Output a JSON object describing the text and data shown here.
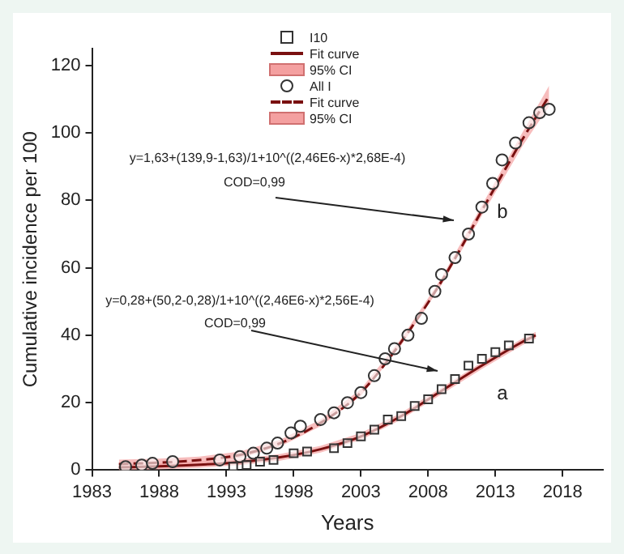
{
  "chart_data": {
    "type": "scatter",
    "xlabel": "Years",
    "ylabel": "Cumulative incidence per 100",
    "xlim": [
      1983,
      2021
    ],
    "xticks": [
      1983,
      1988,
      1993,
      1998,
      2003,
      2008,
      2013,
      2018
    ],
    "ylim": [
      0,
      125
    ],
    "yticks": [
      0,
      20,
      40,
      60,
      80,
      100,
      120
    ],
    "grid": false,
    "legend": "top",
    "series": [
      {
        "name": "I10",
        "marker": "square",
        "color": "#333333",
        "x": [
          1993.5,
          1994.5,
          1995.5,
          1996.5,
          1998,
          1999,
          2001,
          2002,
          2003,
          2004,
          2005,
          2006,
          2007,
          2008,
          2009,
          2010,
          2011,
          2012,
          2013,
          2014,
          2015.5
        ],
        "values": [
          1,
          1.5,
          2.5,
          3,
          5,
          5.5,
          6.5,
          8,
          10,
          12,
          15,
          16,
          19,
          21,
          24,
          27,
          31,
          33,
          35,
          37,
          39
        ]
      },
      {
        "name": "Fit curve",
        "type": "line",
        "line_style": "solid",
        "color": "#7a1010",
        "x": [
          1985,
          1988,
          1991,
          1994,
          1997,
          2000,
          2003,
          2006,
          2009,
          2012,
          2015,
          2016
        ],
        "values": [
          0.8,
          1.1,
          1.6,
          2.4,
          3.8,
          6.2,
          10,
          16,
          23.5,
          31,
          38,
          40
        ],
        "lower": [
          0,
          0.2,
          0.7,
          1.5,
          2.8,
          5.2,
          9,
          15,
          22.5,
          30,
          37,
          39
        ],
        "upper": [
          1.6,
          2,
          2.5,
          3.3,
          4.8,
          7.2,
          11,
          17,
          24.5,
          32,
          39,
          41
        ]
      },
      {
        "name": "All I",
        "marker": "circle",
        "color": "#333333",
        "x": [
          1985.5,
          1986.7,
          1987.5,
          1989,
          1992.5,
          1994,
          1995,
          1996,
          1996.8,
          1997.8,
          1998.5,
          2000,
          2001,
          2002,
          2003,
          2004,
          2004.8,
          2005.5,
          2006.5,
          2007.5,
          2008.5,
          2009,
          2010,
          2011,
          2012,
          2012.8,
          2013.5,
          2014.5,
          2015.5,
          2016.3,
          2017
        ],
        "values": [
          1,
          1.5,
          2,
          2.5,
          3,
          4,
          5,
          6.5,
          8,
          11,
          13,
          15,
          17,
          20,
          23,
          28,
          33,
          36,
          40,
          45,
          53,
          58,
          63,
          70,
          78,
          85,
          92,
          97,
          103,
          106,
          107
        ]
      },
      {
        "name": "Fit curve",
        "type": "line",
        "line_style": "dashed",
        "color": "#7a1010",
        "x": [
          1985,
          1988,
          1991,
          1994,
          1997,
          2000,
          2003,
          2006,
          2009,
          2012,
          2015,
          2017
        ],
        "values": [
          1.8,
          2.2,
          3,
          4.5,
          8,
          14,
          23,
          38,
          56,
          77,
          98,
          111
        ],
        "lower": [
          0.5,
          1,
          2,
          3.5,
          7,
          13,
          22,
          37,
          55,
          75.5,
          96,
          108
        ],
        "upper": [
          3.1,
          3.4,
          4,
          5.5,
          9,
          15,
          24,
          39,
          57,
          78.5,
          100,
          114
        ]
      }
    ],
    "annotations": [
      "y=1,63+(139,9-1,63)/1+10^((2,46E6-x)*2,68E-4)",
      "COD=0,99",
      "b",
      "y=0,28+(50,2-0,28)/1+10^((2,46E6-x)*2,56E-4)",
      "COD=0,99",
      "a",
      "95% CI",
      "95% CI"
    ]
  }
}
